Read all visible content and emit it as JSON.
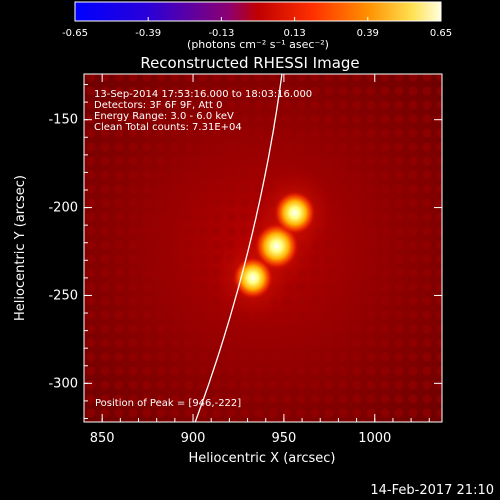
{
  "chart_data": {
    "type": "heatmap",
    "title": "Reconstructed RHESSI Image",
    "xlabel": "Heliocentric X (arcsec)",
    "ylabel": "Heliocentric Y (arcsec)",
    "xlim": [
      840,
      1037
    ],
    "ylim": [
      -322,
      -124
    ],
    "xticks": [
      850,
      900,
      950,
      1000
    ],
    "yticks": [
      -150,
      -200,
      -250,
      -300
    ],
    "colorbar": {
      "ticks": [
        "-0.65",
        "-0.39",
        "-0.13",
        "0.13",
        "0.39",
        "0.65"
      ],
      "range": [
        -0.65,
        0.65
      ],
      "unit_label": "(photons cm⁻² s⁻¹ asec⁻²)"
    },
    "annotations": [
      "13-Sep-2014 17:53:16.000 to 18:03:16.000",
      "Detectors: 3F 6F 9F, Att 0",
      "Energy Range: 3.0 - 6.0 keV",
      "Clean    Total counts: 7.31E+04"
    ],
    "peak_label": "Position of Peak = [946,-222]",
    "peak": [
      946,
      -222
    ],
    "sources": [
      {
        "x": 946,
        "y": -222,
        "intensity": 0.65
      },
      {
        "x": 956,
        "y": -203,
        "intensity": 0.55
      },
      {
        "x": 933,
        "y": -240,
        "intensity": 0.5
      }
    ],
    "timestamp": "14-Feb-2017 21:10"
  },
  "colors": {
    "background": "#000000",
    "limb": "#ffffff"
  }
}
